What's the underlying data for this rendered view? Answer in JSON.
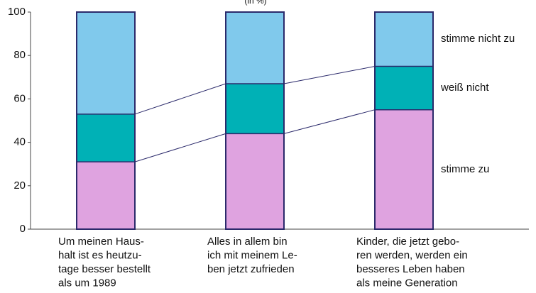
{
  "chart_data": {
    "type": "stacked-bar",
    "subtitle": "(in %)",
    "categories": [
      [
        "Um meinen Haus-",
        "halt ist es heutzu-",
        "tage besser bestellt",
        "als um 1989"
      ],
      [
        "Alles in allem bin",
        "ich mit meinem Le-",
        "ben jetzt zufrieden"
      ],
      [
        "Kinder, die jetzt gebo-",
        "ren werden, werden ein",
        "besseres Leben haben",
        "als meine Generation"
      ]
    ],
    "series": [
      {
        "name": "stimme zu",
        "color": "#dfa3e0",
        "values": [
          31,
          44,
          55
        ]
      },
      {
        "name": "weiß nicht",
        "color": "#00b1b6",
        "values": [
          22,
          23,
          20
        ]
      },
      {
        "name": "stimme nicht zu",
        "color": "#80c9ec",
        "values": [
          47,
          33,
          25
        ]
      }
    ],
    "ylim": [
      0,
      100
    ],
    "yticks": [
      0,
      20,
      40,
      60,
      80,
      100
    ],
    "connectors": true
  }
}
